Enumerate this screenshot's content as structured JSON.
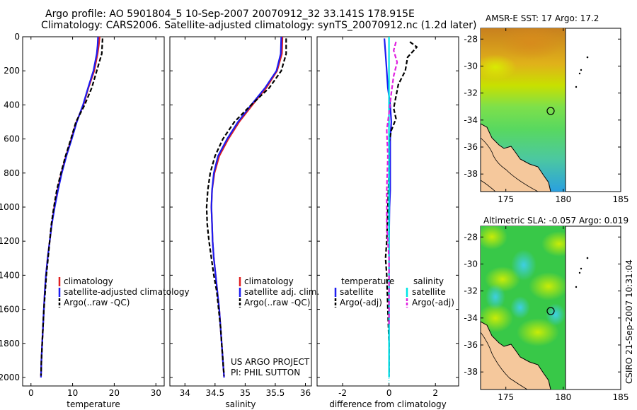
{
  "header": {
    "line1": "Argo profile: AO 5901804_5 10-Sep-2007 20070912_32 33.141S 178.915E",
    "line2": "Climatology: CARS2006. Satellite-adjusted climatology: synTS_20070912.nc (1.2d later)"
  },
  "side_label": "CSIRO 21-Sep-2007 10:31:04",
  "project_note": [
    "US ARGO PROJECT",
    "PI: PHIL SUTTON"
  ],
  "colors": {
    "climatology": "#e02020",
    "satellite": "#1c1cf0",
    "argo": "#000000",
    "salinity_sat": "#00e5e5",
    "salinity_argo": "#e020e0",
    "land": "#f5c89c"
  },
  "chart_data": [
    {
      "type": "line",
      "id": "temperature",
      "xlabel": "temperature",
      "ylabel": "",
      "xlim": [
        -2,
        32
      ],
      "ylim": [
        2050,
        0
      ],
      "xticks": [
        0,
        10,
        20,
        30
      ],
      "yticks": [
        0,
        200,
        400,
        600,
        800,
        1000,
        1200,
        1400,
        1600,
        1800,
        2000
      ],
      "y_reversed": true,
      "legend": [
        "climatology",
        "satellite-adjusted climatology",
        "Argo(..raw -QC)"
      ],
      "series": [
        {
          "name": "climatology",
          "color": "#e02020",
          "dash": "",
          "points": [
            [
              16.5,
              0
            ],
            [
              16.3,
              50
            ],
            [
              16.0,
              100
            ],
            [
              15.2,
              200
            ],
            [
              13.8,
              300
            ],
            [
              12.6,
              400
            ],
            [
              10.9,
              500
            ],
            [
              9.7,
              600
            ],
            [
              8.4,
              700
            ],
            [
              7.3,
              800
            ],
            [
              6.4,
              900
            ],
            [
              5.6,
              1000
            ],
            [
              5.0,
              1100
            ],
            [
              4.5,
              1200
            ],
            [
              4.0,
              1300
            ],
            [
              3.6,
              1400
            ],
            [
              3.3,
              1500
            ],
            [
              3.1,
              1600
            ],
            [
              2.9,
              1700
            ],
            [
              2.7,
              1800
            ],
            [
              2.5,
              1900
            ],
            [
              2.4,
              2000
            ]
          ]
        },
        {
          "name": "satellite-adjusted climatology",
          "color": "#1c1cf0",
          "dash": "",
          "points": [
            [
              16.1,
              0
            ],
            [
              16.0,
              50
            ],
            [
              15.8,
              100
            ],
            [
              15.0,
              200
            ],
            [
              13.7,
              300
            ],
            [
              12.5,
              400
            ],
            [
              11.0,
              500
            ],
            [
              9.8,
              600
            ],
            [
              8.5,
              700
            ],
            [
              7.4,
              800
            ],
            [
              6.5,
              900
            ],
            [
              5.7,
              1000
            ],
            [
              5.0,
              1100
            ],
            [
              4.5,
              1200
            ],
            [
              4.0,
              1300
            ],
            [
              3.6,
              1400
            ],
            [
              3.3,
              1500
            ],
            [
              3.1,
              1600
            ],
            [
              2.9,
              1700
            ],
            [
              2.7,
              1800
            ],
            [
              2.5,
              1900
            ],
            [
              2.4,
              2000
            ]
          ]
        },
        {
          "name": "Argo(..raw -QC)",
          "color": "#000000",
          "dash": "6,3",
          "points": [
            [
              17.2,
              10
            ],
            [
              17.1,
              50
            ],
            [
              17.0,
              100
            ],
            [
              16.4,
              150
            ],
            [
              15.8,
              200
            ],
            [
              14.6,
              300
            ],
            [
              12.9,
              400
            ],
            [
              10.8,
              500
            ],
            [
              9.6,
              600
            ],
            [
              8.3,
              700
            ],
            [
              7.2,
              800
            ],
            [
              6.2,
              900
            ],
            [
              5.5,
              1000
            ],
            [
              4.9,
              1100
            ],
            [
              4.5,
              1200
            ],
            [
              4.1,
              1300
            ],
            [
              3.7,
              1400
            ],
            [
              3.4,
              1500
            ],
            [
              3.1,
              1600
            ],
            [
              2.9,
              1700
            ],
            [
              2.7,
              1800
            ],
            [
              2.5,
              1900
            ],
            [
              2.4,
              1990
            ]
          ]
        }
      ]
    },
    {
      "type": "line",
      "id": "salinity",
      "xlabel": "salinity",
      "ylabel": "",
      "xlim": [
        33.75,
        36.1
      ],
      "ylim": [
        2050,
        0
      ],
      "xticks": [
        34,
        34.5,
        35,
        35.5,
        36
      ],
      "yticks": [
        0,
        200,
        400,
        600,
        800,
        1000,
        1200,
        1400,
        1600,
        1800,
        2000
      ],
      "y_reversed": true,
      "legend": [
        "climatology",
        "satellite adj. clim.",
        "Argo(..raw -QC)"
      ],
      "series": [
        {
          "name": "climatology",
          "color": "#e02020",
          "dash": "",
          "points": [
            [
              35.62,
              0
            ],
            [
              35.61,
              100
            ],
            [
              35.53,
              200
            ],
            [
              35.35,
              300
            ],
            [
              35.12,
              400
            ],
            [
              34.9,
              500
            ],
            [
              34.72,
              600
            ],
            [
              34.57,
              700
            ],
            [
              34.49,
              800
            ],
            [
              34.45,
              900
            ],
            [
              34.44,
              1000
            ],
            [
              34.45,
              1100
            ],
            [
              34.46,
              1200
            ],
            [
              34.48,
              1300
            ],
            [
              34.51,
              1400
            ],
            [
              34.54,
              1500
            ],
            [
              34.57,
              1600
            ],
            [
              34.59,
              1700
            ],
            [
              34.61,
              1800
            ],
            [
              34.63,
              1900
            ],
            [
              34.65,
              2000
            ]
          ]
        },
        {
          "name": "satellite adj. clim.",
          "color": "#1c1cf0",
          "dash": "",
          "points": [
            [
              35.6,
              0
            ],
            [
              35.59,
              100
            ],
            [
              35.52,
              200
            ],
            [
              35.33,
              300
            ],
            [
              35.1,
              400
            ],
            [
              34.88,
              500
            ],
            [
              34.7,
              600
            ],
            [
              34.55,
              700
            ],
            [
              34.48,
              800
            ],
            [
              34.45,
              900
            ],
            [
              34.44,
              1000
            ],
            [
              34.45,
              1100
            ],
            [
              34.46,
              1200
            ],
            [
              34.48,
              1300
            ],
            [
              34.51,
              1400
            ],
            [
              34.54,
              1500
            ],
            [
              34.57,
              1600
            ],
            [
              34.59,
              1700
            ],
            [
              34.61,
              1800
            ],
            [
              34.63,
              1900
            ],
            [
              34.65,
              2000
            ]
          ]
        },
        {
          "name": "Argo(..raw -QC)",
          "color": "#000000",
          "dash": "6,3",
          "points": [
            [
              35.68,
              10
            ],
            [
              35.68,
              100
            ],
            [
              35.6,
              200
            ],
            [
              35.4,
              300
            ],
            [
              35.1,
              400
            ],
            [
              34.82,
              500
            ],
            [
              34.63,
              600
            ],
            [
              34.5,
              700
            ],
            [
              34.42,
              800
            ],
            [
              34.38,
              900
            ],
            [
              34.36,
              1000
            ],
            [
              34.37,
              1100
            ],
            [
              34.4,
              1200
            ],
            [
              34.44,
              1300
            ],
            [
              34.48,
              1400
            ],
            [
              34.53,
              1500
            ],
            [
              34.56,
              1600
            ],
            [
              34.59,
              1700
            ],
            [
              34.61,
              1800
            ],
            [
              34.63,
              1900
            ],
            [
              34.65,
              1990
            ]
          ]
        }
      ]
    },
    {
      "type": "line",
      "id": "difference",
      "xlabel": "difference from climatology",
      "ylabel": "",
      "xlim": [
        -3.1,
        3.0
      ],
      "ylim": [
        2050,
        0
      ],
      "xticks": [
        -2,
        0,
        2
      ],
      "yticks": [
        0,
        200,
        400,
        600,
        800,
        1000,
        1200,
        1400,
        1600,
        1800,
        2000
      ],
      "y_reversed": true,
      "legend_columns": [
        {
          "title": "temperature",
          "items": [
            "satellite",
            "Argo(-adj)"
          ]
        },
        {
          "title": "salinity",
          "items": [
            "satellite",
            "Argo(-adj)"
          ]
        }
      ],
      "series": [
        {
          "name": "temperature satellite",
          "color": "#1c1cf0",
          "dash": "",
          "points": [
            [
              -0.2,
              10
            ],
            [
              -0.15,
              100
            ],
            [
              -0.1,
              200
            ],
            [
              -0.05,
              300
            ],
            [
              0.05,
              400
            ],
            [
              0.1,
              500
            ],
            [
              0.05,
              600
            ],
            [
              0.05,
              700
            ],
            [
              0.05,
              800
            ],
            [
              0.05,
              900
            ],
            [
              0.02,
              1000
            ],
            [
              0.0,
              1200
            ],
            [
              0.0,
              1400
            ],
            [
              0.0,
              1600
            ],
            [
              0.0,
              1800
            ],
            [
              0.0,
              2000
            ]
          ]
        },
        {
          "name": "temperature Argo(-adj)",
          "color": "#000000",
          "dash": "6,3",
          "points": [
            [
              0.9,
              30
            ],
            [
              1.2,
              60
            ],
            [
              0.8,
              120
            ],
            [
              0.7,
              200
            ],
            [
              0.4,
              280
            ],
            [
              0.3,
              350
            ],
            [
              0.2,
              420
            ],
            [
              0.3,
              480
            ],
            [
              0.1,
              550
            ],
            [
              0.0,
              620
            ],
            [
              0.0,
              800
            ],
            [
              -0.05,
              1000
            ],
            [
              -0.1,
              1200
            ],
            [
              -0.15,
              1300
            ],
            [
              -0.1,
              1400
            ],
            [
              -0.05,
              1600
            ],
            [
              0.0,
              1800
            ],
            [
              0.0,
              1990
            ]
          ]
        },
        {
          "name": "salinity satellite",
          "color": "#00e5e5",
          "dash": "",
          "points": [
            [
              0.0,
              0
            ],
            [
              0.0,
              400
            ],
            [
              0.0,
              800
            ],
            [
              0.0,
              1200
            ],
            [
              0.0,
              1600
            ],
            [
              0.0,
              2000
            ]
          ]
        },
        {
          "name": "salinity Argo(-adj)",
          "color": "#e020e0",
          "dash": "6,3",
          "points": [
            [
              0.3,
              30
            ],
            [
              0.2,
              80
            ],
            [
              0.35,
              150
            ],
            [
              0.2,
              230
            ],
            [
              0.1,
              330
            ],
            [
              0.0,
              450
            ],
            [
              -0.1,
              550
            ],
            [
              -0.05,
              700
            ],
            [
              -0.1,
              900
            ],
            [
              -0.1,
              1100
            ],
            [
              0.0,
              1300
            ],
            [
              0.0,
              1500
            ],
            [
              0.0,
              1700
            ]
          ]
        }
      ]
    },
    {
      "type": "heatmap",
      "id": "sst_map",
      "title": "AMSR-E SST: 17 Argo: 17.2",
      "xticks": [
        175,
        180,
        185
      ],
      "yticks": [
        -28,
        -30,
        -32,
        -34,
        -36,
        -38
      ],
      "xlim": [
        172.8,
        185
      ],
      "ylim": [
        -39.3,
        -27.2
      ],
      "float_position": [
        178.915,
        -33.141
      ]
    },
    {
      "type": "heatmap",
      "id": "sla_map",
      "title": "Altimetric SLA: -0.057 Argo: 0.019",
      "xticks": [
        175,
        180,
        185
      ],
      "yticks": [
        -28,
        -30,
        -32,
        -34,
        -36,
        -38
      ],
      "xlim": [
        172.8,
        185
      ],
      "ylim": [
        -39.3,
        -27.2
      ],
      "float_position": [
        178.915,
        -33.141
      ]
    }
  ]
}
